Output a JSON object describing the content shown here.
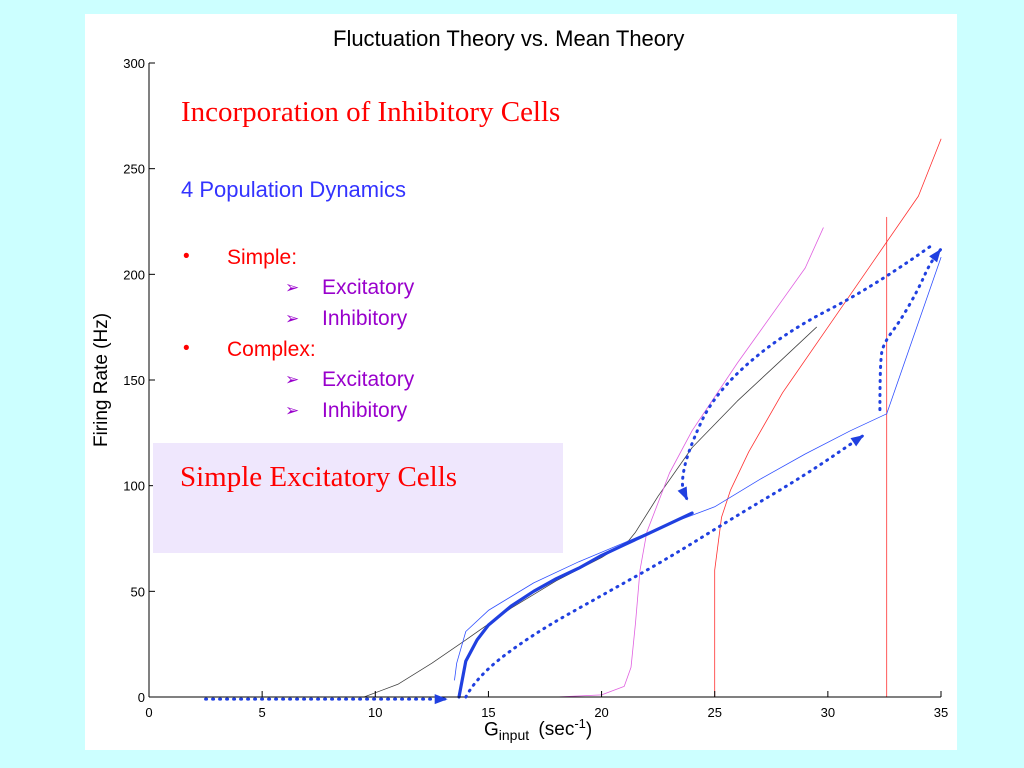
{
  "chart_data": {
    "type": "line",
    "title": "Fluctuation Theory vs. Mean Theory",
    "xlabel": "G",
    "xlabel_subscript": "input",
    "xlabel_units_prefix": "(sec",
    "xlabel_units_exp": "-1",
    "xlabel_units_suffix": ")",
    "ylabel": "Firing Rate (Hz)",
    "xlim": [
      0,
      35
    ],
    "ylim": [
      0,
      300
    ],
    "xticks": [
      0,
      5,
      10,
      15,
      20,
      25,
      30,
      35
    ],
    "yticks": [
      0,
      50,
      100,
      150,
      200,
      250,
      300
    ],
    "grid": false,
    "series": [
      {
        "color": "#404040",
        "width": 0.8,
        "x": [
          9.5,
          11,
          12.5,
          14,
          16,
          18,
          20,
          21.2,
          21.5,
          22.5,
          24,
          26,
          28,
          29.5
        ],
        "y": [
          0,
          6,
          16,
          27,
          42,
          55,
          66,
          74,
          78,
          95,
          118,
          140,
          160,
          175
        ]
      },
      {
        "color": "#e060e0",
        "width": 0.8,
        "x": [
          13.9,
          16,
          18,
          20,
          21,
          21.3,
          21.5,
          21.7,
          22,
          23,
          24,
          25,
          26,
          27,
          28,
          29,
          29.8
        ],
        "y": [
          0,
          0,
          0,
          1,
          5,
          14,
          35,
          60,
          78,
          106,
          126,
          142,
          158,
          173,
          188,
          203,
          222
        ]
      },
      {
        "color": "#ff3030",
        "width": 0.8,
        "x": [
          10,
          25,
          25,
          25.3,
          25.7,
          26.5,
          28,
          30,
          32,
          34,
          35
        ],
        "y": [
          0,
          0,
          60,
          85,
          98,
          116,
          144,
          175,
          206,
          237,
          264
        ]
      },
      {
        "color": "#ff3030",
        "width": 0.8,
        "x": [
          25,
          32.6,
          32.6
        ],
        "y": [
          0,
          0,
          227
        ]
      },
      {
        "color": "#3050ff",
        "width": 0.8,
        "x": [
          13.5,
          13.6,
          14,
          15,
          17,
          19,
          21,
          23,
          25,
          27,
          29,
          31,
          32.6
        ],
        "y": [
          8,
          16,
          31,
          41,
          54,
          64,
          73,
          82,
          90,
          103,
          115,
          126,
          134
        ]
      },
      {
        "color": "#3050ff",
        "width": 0.8,
        "x": [
          32.6,
          35
        ],
        "y": [
          134,
          208
        ]
      },
      {
        "color": "#2040e0",
        "width": 3.2,
        "x": [
          13.7,
          14,
          14.5,
          15,
          16,
          17,
          18,
          19,
          20,
          21,
          22,
          23,
          24
        ],
        "y": [
          0,
          17,
          27,
          34,
          43,
          50,
          56,
          61,
          67,
          72,
          77,
          82,
          87
        ]
      }
    ],
    "arrows": [
      {
        "color": "#2040e0",
        "style": "dotted",
        "x": [
          2.5,
          13.2
        ],
        "y": [
          -1,
          -1
        ]
      },
      {
        "color": "#2040e0",
        "style": "dotted",
        "x": [
          14,
          14.5,
          17,
          20,
          23,
          26,
          29,
          31.6
        ],
        "y": [
          0,
          10,
          30,
          48,
          66,
          86,
          105,
          124
        ]
      },
      {
        "color": "#2040e0",
        "style": "dotted",
        "x": [
          34.5,
          32,
          28,
          25,
          23.8,
          23.5,
          23.8
        ],
        "y": [
          213,
          194,
          172,
          144,
          116,
          100,
          93
        ]
      },
      {
        "color": "#2040e0",
        "style": "dotted",
        "x": [
          32.3,
          32.3,
          32.5,
          33.2,
          34,
          34.5,
          35
        ],
        "y": [
          136,
          160,
          168,
          178,
          193,
          205,
          212
        ]
      }
    ]
  },
  "overlay": {
    "heading": "Incorporation of Inhibitory Cells",
    "subheading": "4 Population Dynamics",
    "bullets": [
      {
        "label": "Simple:",
        "items": [
          "Excitatory",
          "Inhibitory"
        ]
      },
      {
        "label": "Complex:",
        "items": [
          "Excitatory",
          "Inhibitory"
        ]
      }
    ],
    "box_text": "Simple Excitatory Cells",
    "bullet_glyph": "•",
    "sub_glyph": "➢"
  },
  "colors": {
    "background": "#ccffff",
    "panel": "#ffffff",
    "heading": "#ff0000",
    "subheading": "#3333ff",
    "bullet": "#ff0000",
    "sub_item": "#9900cc",
    "box": "#efe7fd"
  }
}
